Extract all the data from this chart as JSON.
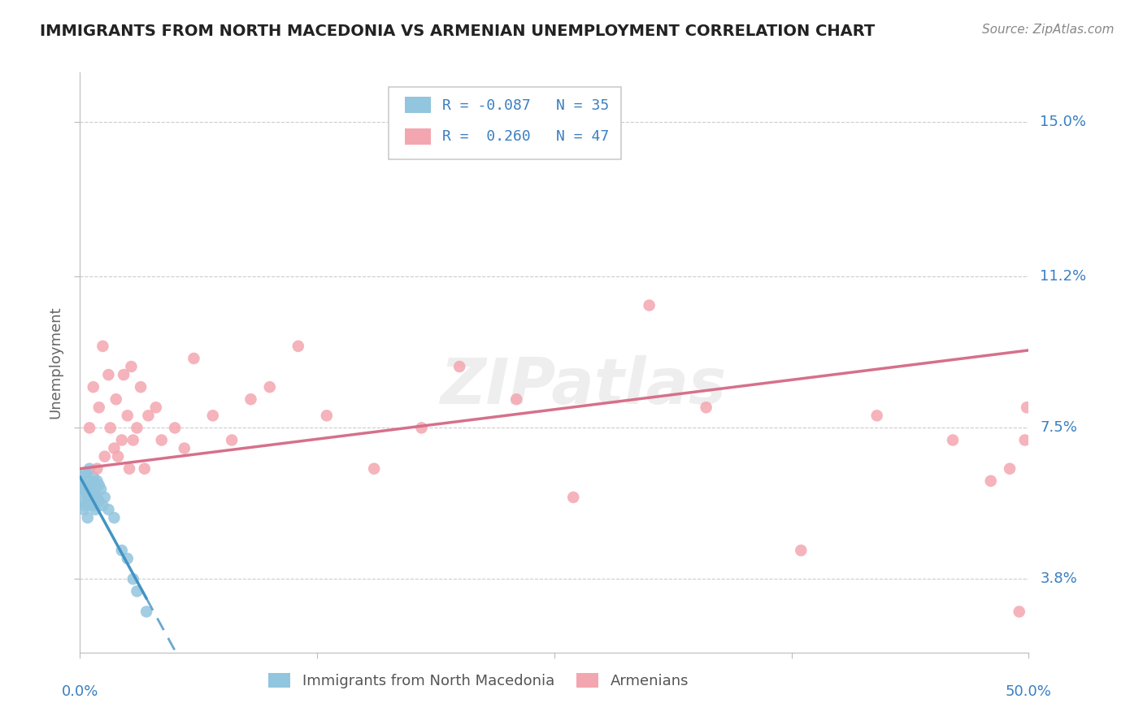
{
  "title": "IMMIGRANTS FROM NORTH MACEDONIA VS ARMENIAN UNEMPLOYMENT CORRELATION CHART",
  "source": "Source: ZipAtlas.com",
  "ylabel": "Unemployment",
  "yticks_pct": [
    3.8,
    7.5,
    11.2,
    15.0
  ],
  "ytick_labels": [
    "3.8%",
    "7.5%",
    "11.2%",
    "15.0%"
  ],
  "xlim": [
    0.0,
    0.5
  ],
  "ylim": [
    0.02,
    0.162
  ],
  "legend_r1": "R = -0.087",
  "legend_n1": "N = 35",
  "legend_r2": "R =  0.260",
  "legend_n2": "N = 47",
  "color_blue": "#92C5DE",
  "color_pink": "#F4A6B0",
  "color_blue_line": "#4393C3",
  "color_pink_line": "#D6708B",
  "watermark": "ZIPatlas",
  "blue_x": [
    0.001,
    0.001,
    0.002,
    0.002,
    0.002,
    0.003,
    0.003,
    0.003,
    0.004,
    0.004,
    0.004,
    0.005,
    0.005,
    0.005,
    0.006,
    0.006,
    0.007,
    0.007,
    0.007,
    0.008,
    0.008,
    0.009,
    0.009,
    0.01,
    0.01,
    0.011,
    0.012,
    0.013,
    0.015,
    0.018,
    0.022,
    0.025,
    0.028,
    0.03,
    0.035
  ],
  "blue_y": [
    0.06,
    0.063,
    0.057,
    0.061,
    0.055,
    0.059,
    0.064,
    0.056,
    0.06,
    0.058,
    0.053,
    0.062,
    0.057,
    0.065,
    0.061,
    0.058,
    0.06,
    0.056,
    0.063,
    0.059,
    0.055,
    0.062,
    0.058,
    0.057,
    0.061,
    0.06,
    0.056,
    0.058,
    0.055,
    0.053,
    0.045,
    0.043,
    0.038,
    0.035,
    0.03
  ],
  "pink_x": [
    0.005,
    0.007,
    0.009,
    0.01,
    0.012,
    0.013,
    0.015,
    0.016,
    0.018,
    0.019,
    0.02,
    0.022,
    0.023,
    0.025,
    0.026,
    0.027,
    0.028,
    0.03,
    0.032,
    0.034,
    0.036,
    0.04,
    0.043,
    0.05,
    0.055,
    0.06,
    0.07,
    0.08,
    0.09,
    0.1,
    0.115,
    0.13,
    0.155,
    0.18,
    0.2,
    0.23,
    0.26,
    0.3,
    0.33,
    0.38,
    0.42,
    0.46,
    0.48,
    0.49,
    0.495,
    0.498,
    0.499
  ],
  "pink_y": [
    0.075,
    0.085,
    0.065,
    0.08,
    0.095,
    0.068,
    0.088,
    0.075,
    0.07,
    0.082,
    0.068,
    0.072,
    0.088,
    0.078,
    0.065,
    0.09,
    0.072,
    0.075,
    0.085,
    0.065,
    0.078,
    0.08,
    0.072,
    0.075,
    0.07,
    0.092,
    0.078,
    0.072,
    0.082,
    0.085,
    0.095,
    0.078,
    0.065,
    0.075,
    0.09,
    0.082,
    0.058,
    0.105,
    0.08,
    0.045,
    0.078,
    0.072,
    0.062,
    0.065,
    0.03,
    0.072,
    0.08
  ],
  "bg": "#FFFFFF",
  "grid_color": "#CCCCCC",
  "axis_color": "#BBBBBB",
  "text_blue": "#3A7FC1",
  "text_grey": "#888888",
  "text_dark": "#222222",
  "blue_line_x0": 0.0,
  "blue_line_x_solid_end": 0.035,
  "blue_line_x1": 0.5,
  "blue_line_y_at_0": 0.063,
  "blue_line_slope": -0.85,
  "pink_line_y_at_0": 0.065,
  "pink_line_slope": 0.058
}
